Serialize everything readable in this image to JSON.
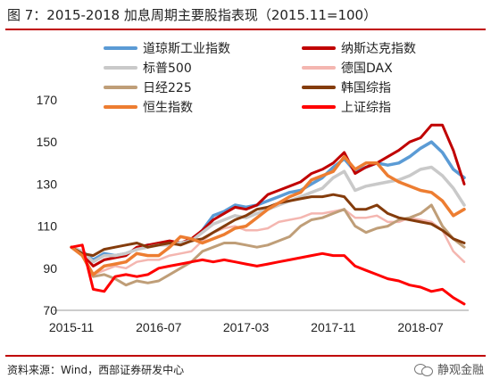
{
  "title": "图 7：2015-2018 加息周期主要股指表现（2015.11=100）",
  "source": "资料来源：Wind，西部证券研发中心",
  "watermark": "静观金融",
  "chart_data": {
    "type": "line",
    "title": "图 7：2015-2018 加息周期主要股指表现（2015.11=100）",
    "xlabel": "",
    "ylabel": "",
    "x_range": [
      0,
      36
    ],
    "ylim": [
      70,
      170
    ],
    "yticks": [
      70,
      90,
      110,
      130,
      150,
      170
    ],
    "xticks": [
      {
        "x": 0,
        "label": "2015-11"
      },
      {
        "x": 8,
        "label": "2016-07"
      },
      {
        "x": 16,
        "label": "2017-03"
      },
      {
        "x": 24,
        "label": "2017-11"
      },
      {
        "x": 32,
        "label": "2018-07"
      }
    ],
    "grid": false,
    "legend_position": "top",
    "series": [
      {
        "name": "道琼斯工业指数",
        "color": "#5b9bd5",
        "width": 3.5,
        "x": [
          0,
          1,
          2,
          3,
          4,
          5,
          6,
          7,
          8,
          9,
          10,
          11,
          12,
          13,
          14,
          15,
          16,
          17,
          18,
          19,
          20,
          21,
          22,
          23,
          24,
          25,
          26,
          27,
          28,
          29,
          30,
          31,
          32,
          33,
          34,
          35,
          36
        ],
        "values": [
          100,
          98,
          94,
          97,
          96,
          97,
          99,
          101,
          101,
          102,
          102,
          103,
          108,
          115,
          117,
          120,
          119,
          120,
          122,
          124,
          126,
          127,
          130,
          133,
          138,
          142,
          136,
          138,
          140,
          139,
          140,
          143,
          147,
          150,
          145,
          137,
          133
        ]
      },
      {
        "name": "纳斯达克指数",
        "color": "#c00000",
        "width": 3,
        "x": [
          0,
          1,
          2,
          3,
          4,
          5,
          6,
          7,
          8,
          9,
          10,
          11,
          12,
          13,
          14,
          15,
          16,
          17,
          18,
          19,
          20,
          21,
          22,
          23,
          24,
          25,
          26,
          27,
          28,
          29,
          30,
          31,
          32,
          33,
          34,
          35,
          36
        ],
        "values": [
          100,
          97,
          91,
          94,
          95,
          96,
          100,
          101,
          102,
          103,
          102,
          104,
          108,
          113,
          116,
          119,
          118,
          120,
          125,
          127,
          129,
          131,
          135,
          137,
          140,
          145,
          135,
          138,
          140,
          143,
          146,
          150,
          152,
          158,
          158,
          146,
          130
        ]
      },
      {
        "name": "标普500",
        "color": "#c9c9c9",
        "width": 3.5,
        "x": [
          0,
          1,
          2,
          3,
          4,
          5,
          6,
          7,
          8,
          9,
          10,
          11,
          12,
          13,
          14,
          15,
          16,
          17,
          18,
          19,
          20,
          21,
          22,
          23,
          24,
          25,
          26,
          27,
          28,
          29,
          30,
          31,
          32,
          33,
          34,
          35,
          36
        ],
        "values": [
          100,
          98,
          93,
          96,
          96,
          97,
          99,
          100,
          101,
          101,
          102,
          103,
          107,
          111,
          113,
          115,
          114,
          116,
          118,
          120,
          122,
          124,
          126,
          128,
          133,
          136,
          127,
          129,
          130,
          131,
          132,
          134,
          137,
          138,
          134,
          128,
          120
        ]
      },
      {
        "name": "德国DAX",
        "color": "#f4b6b0",
        "width": 2.5,
        "x": [
          0,
          1,
          2,
          3,
          4,
          5,
          6,
          7,
          8,
          9,
          10,
          11,
          12,
          13,
          14,
          15,
          16,
          17,
          18,
          19,
          20,
          21,
          22,
          23,
          24,
          25,
          26,
          27,
          28,
          29,
          30,
          31,
          32,
          33,
          34,
          35,
          36
        ],
        "values": [
          100,
          97,
          87,
          89,
          91,
          90,
          93,
          94,
          94,
          96,
          97,
          98,
          103,
          107,
          109,
          110,
          108,
          108,
          109,
          112,
          113,
          114,
          116,
          116,
          117,
          118,
          114,
          114,
          115,
          112,
          112,
          114,
          113,
          112,
          108,
          98,
          93
        ]
      },
      {
        "name": "日经225",
        "color": "#bf9e78",
        "width": 3,
        "x": [
          0,
          1,
          2,
          3,
          4,
          5,
          6,
          7,
          8,
          9,
          10,
          11,
          12,
          13,
          14,
          15,
          16,
          17,
          18,
          19,
          20,
          21,
          22,
          23,
          24,
          25,
          26,
          27,
          28,
          29,
          30,
          31,
          32,
          33,
          34,
          35,
          36
        ],
        "values": [
          100,
          96,
          86,
          87,
          85,
          82,
          84,
          83,
          84,
          87,
          90,
          93,
          98,
          100,
          102,
          102,
          101,
          100,
          101,
          103,
          105,
          110,
          113,
          114,
          116,
          118,
          110,
          107,
          109,
          110,
          113,
          114,
          116,
          120,
          110,
          104,
          100
        ]
      },
      {
        "name": "韩国综指",
        "color": "#843c0c",
        "width": 3,
        "x": [
          0,
          1,
          2,
          3,
          4,
          5,
          6,
          7,
          8,
          9,
          10,
          11,
          12,
          13,
          14,
          15,
          16,
          17,
          18,
          19,
          20,
          21,
          22,
          23,
          24,
          25,
          26,
          27,
          28,
          29,
          30,
          31,
          32,
          33,
          34,
          35,
          36
        ],
        "values": [
          100,
          97,
          96,
          99,
          100,
          101,
          102,
          100,
          101,
          102,
          101,
          103,
          104,
          107,
          110,
          113,
          115,
          118,
          119,
          121,
          122,
          123,
          124,
          124,
          125,
          124,
          118,
          118,
          120,
          116,
          114,
          113,
          112,
          111,
          108,
          104,
          102
        ]
      },
      {
        "name": "恒生指数",
        "color": "#ed7d31",
        "width": 3.5,
        "x": [
          0,
          1,
          2,
          3,
          4,
          5,
          6,
          7,
          8,
          9,
          10,
          11,
          12,
          13,
          14,
          15,
          16,
          17,
          18,
          19,
          20,
          21,
          22,
          23,
          24,
          25,
          26,
          27,
          28,
          29,
          30,
          31,
          32,
          33,
          34,
          35,
          36
        ],
        "values": [
          100,
          96,
          87,
          91,
          92,
          93,
          97,
          96,
          96,
          100,
          105,
          104,
          102,
          104,
          106,
          109,
          110,
          114,
          118,
          121,
          124,
          126,
          132,
          134,
          136,
          143,
          137,
          140,
          140,
          134,
          131,
          129,
          127,
          126,
          122,
          115,
          118
        ]
      },
      {
        "name": "上证综指",
        "color": "#ff0000",
        "width": 3,
        "x": [
          0,
          1,
          2,
          3,
          4,
          5,
          6,
          7,
          8,
          9,
          10,
          11,
          12,
          13,
          14,
          15,
          16,
          17,
          18,
          19,
          20,
          21,
          22,
          23,
          24,
          25,
          26,
          27,
          28,
          29,
          30,
          31,
          32,
          33,
          34,
          35,
          36
        ],
        "values": [
          100,
          101,
          80,
          79,
          86,
          87,
          86,
          87,
          90,
          91,
          92,
          93,
          94,
          93,
          94,
          93,
          92,
          91,
          92,
          93,
          94,
          95,
          96,
          97,
          96,
          96,
          91,
          89,
          87,
          85,
          84,
          82,
          81,
          79,
          80,
          76,
          73
        ]
      }
    ]
  }
}
